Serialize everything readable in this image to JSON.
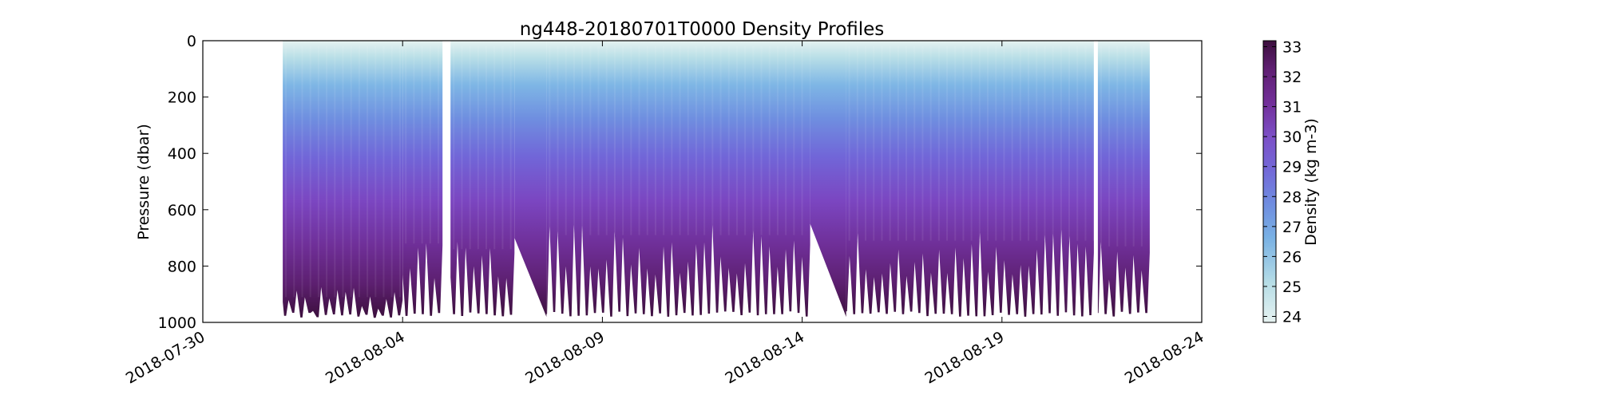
{
  "chart_data": {
    "type": "heatmap",
    "title": "ng448-20180701T0000 Density Profiles",
    "xlabel": "",
    "ylabel": "Pressure (dbar)",
    "xlim": [
      "2018-07-30",
      "2018-08-24"
    ],
    "ylim": [
      1000,
      0
    ],
    "y_inverted": true,
    "x_ticks": [
      "2018-07-30",
      "2018-08-04",
      "2018-08-09",
      "2018-08-14",
      "2018-08-19",
      "2018-08-24"
    ],
    "y_ticks": [
      "0",
      "200",
      "400",
      "600",
      "800",
      "1000"
    ],
    "colorbar": {
      "label": "Density (kg m-3)",
      "range": [
        23.8,
        33.2
      ],
      "ticks": [
        "24",
        "25",
        "26",
        "27",
        "28",
        "29",
        "30",
        "31",
        "32",
        "33"
      ],
      "colors": [
        "#e6f2f1",
        "#b6dde6",
        "#79b1e4",
        "#6f8de0",
        "#7369d8",
        "#7c4fc6",
        "#722f99",
        "#5f1f72",
        "#3c0f3d"
      ]
    },
    "segments": [
      {
        "start": "2018-08-01",
        "end": "2018-08-04",
        "bottom_range": [
          870,
          985
        ],
        "pattern": "deep-to-bottom"
      },
      {
        "start": "2018-08-04",
        "end": "2018-08-05",
        "bottom_range": [
          680,
          980
        ],
        "pattern": "dives"
      },
      {
        "start": "2018-08-05.2",
        "end": "2018-08-06.8",
        "bottom_range": [
          700,
          980
        ],
        "pattern": "dives"
      },
      {
        "start": "2018-08-06.8",
        "end": "2018-08-07.6",
        "bottom_range": [
          700,
          980
        ],
        "pattern": "gap"
      },
      {
        "start": "2018-08-07.6",
        "end": "2018-08-14.2",
        "bottom_range": [
          650,
          980
        ],
        "pattern": "dives"
      },
      {
        "start": "2018-08-14.2",
        "end": "2018-08-15.1",
        "bottom_range": [
          650,
          980
        ],
        "pattern": "gap"
      },
      {
        "start": "2018-08-15.1",
        "end": "2018-08-21.3",
        "bottom_range": [
          670,
          980
        ],
        "pattern": "dives"
      },
      {
        "start": "2018-08-21.4",
        "end": "2018-08-22.7",
        "bottom_range": [
          690,
          980
        ],
        "pattern": "dives"
      }
    ]
  }
}
